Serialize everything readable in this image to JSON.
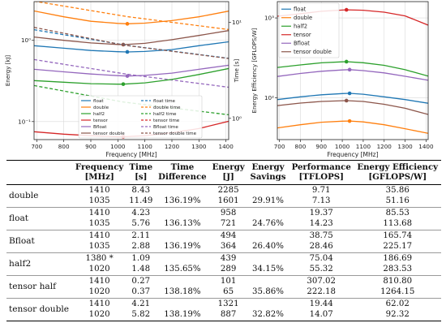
{
  "charts": [
    {
      "type": "line",
      "xlabel": "Frequency [MHz]",
      "ylabel": "Energy [kJ]",
      "y2label": "Time [s]",
      "xlim": [
        690,
        1410
      ],
      "xticks": [
        700,
        800,
        900,
        1000,
        1100,
        1200,
        1300,
        1400
      ],
      "ylim": [
        0.06,
        3.0
      ],
      "yscale": "log",
      "yticks": [
        0.1,
        1
      ],
      "yticklabels": [
        "10⁻¹",
        "10⁰"
      ],
      "y2lim": [
        0.6,
        16.5
      ],
      "y2scale": "log",
      "y2ticks": [
        1,
        10
      ],
      "y2ticklabels": [
        "10⁰",
        "10¹"
      ],
      "grid": true,
      "legend": {
        "placement": "bottom-center",
        "columns": 2,
        "entries": [
          {
            "label": "float",
            "color": "#1f77b4",
            "dash": false
          },
          {
            "label": "float time",
            "color": "#1f77b4",
            "dash": true
          },
          {
            "label": "double",
            "color": "#ff7f0e",
            "dash": false
          },
          {
            "label": "double time",
            "color": "#ff7f0e",
            "dash": true
          },
          {
            "label": "half2",
            "color": "#2ca02c",
            "dash": false
          },
          {
            "label": "half2 time",
            "color": "#2ca02c",
            "dash": true
          },
          {
            "label": "tensor",
            "color": "#d62728",
            "dash": false
          },
          {
            "label": "tensor time",
            "color": "#d62728",
            "dash": true
          },
          {
            "label": "Bfloat",
            "color": "#9467bd",
            "dash": false
          },
          {
            "label": "Bfloat time",
            "color": "#9467bd",
            "dash": true
          },
          {
            "label": "tensor double",
            "color": "#8c564b",
            "dash": false
          },
          {
            "label": "tensor double time",
            "color": "#8c564b",
            "dash": true
          }
        ]
      },
      "series": [
        {
          "key": "double",
          "axis": "y",
          "color": "#ff7f0e",
          "dash": false,
          "x": [
            690,
            800,
            900,
            1000,
            1035,
            1100,
            1200,
            1300,
            1410
          ],
          "y": [
            2.3,
            1.95,
            1.72,
            1.62,
            1.6,
            1.63,
            1.75,
            1.95,
            2.29
          ],
          "marker": [
            1035,
            1.6
          ]
        },
        {
          "key": "double time",
          "axis": "y2",
          "color": "#ff7f0e",
          "dash": true,
          "x": [
            690,
            1035,
            1410
          ],
          "y": [
            16.7,
            11.5,
            8.43
          ]
        },
        {
          "key": "tensor double",
          "axis": "y",
          "color": "#8c564b",
          "dash": false,
          "x": [
            690,
            800,
            900,
            1000,
            1020,
            1100,
            1200,
            1300,
            1410
          ],
          "y": [
            1.1,
            1.0,
            0.93,
            0.89,
            0.887,
            0.92,
            1.02,
            1.15,
            1.32
          ],
          "marker": [
            1020,
            0.887
          ]
        },
        {
          "key": "float",
          "axis": "y",
          "color": "#1f77b4",
          "dash": false,
          "x": [
            690,
            800,
            900,
            1000,
            1035,
            1100,
            1200,
            1300,
            1410
          ],
          "y": [
            0.86,
            0.8,
            0.75,
            0.725,
            0.721,
            0.73,
            0.77,
            0.86,
            0.96
          ],
          "marker": [
            1035,
            0.721
          ]
        },
        {
          "key": "float time",
          "axis": "y2",
          "color": "#1f77b4",
          "dash": true,
          "x": [
            690,
            1035,
            1410
          ],
          "y": [
            8.4,
            5.76,
            4.23
          ]
        },
        {
          "key": "tensor double time",
          "axis": "y2",
          "color": "#8c564b",
          "dash": true,
          "x": [
            690,
            1020,
            1410
          ],
          "y": [
            8.9,
            5.82,
            4.21
          ]
        },
        {
          "key": "Bfloat",
          "axis": "y",
          "color": "#9467bd",
          "dash": false,
          "x": [
            690,
            800,
            900,
            1000,
            1035,
            1100,
            1200,
            1300,
            1410
          ],
          "y": [
            0.44,
            0.41,
            0.385,
            0.368,
            0.364,
            0.37,
            0.395,
            0.44,
            0.494
          ],
          "marker": [
            1035,
            0.364
          ]
        },
        {
          "key": "Bfloat time",
          "axis": "y2",
          "color": "#9467bd",
          "dash": true,
          "x": [
            690,
            1035,
            1410
          ],
          "y": [
            4.1,
            2.88,
            2.11
          ]
        },
        {
          "key": "half2",
          "axis": "y",
          "color": "#2ca02c",
          "dash": false,
          "x": [
            690,
            800,
            900,
            1000,
            1020,
            1100,
            1200,
            1300,
            1410
          ],
          "y": [
            0.32,
            0.305,
            0.293,
            0.289,
            0.289,
            0.3,
            0.33,
            0.38,
            0.45
          ],
          "marker": [
            1020,
            0.289
          ]
        },
        {
          "key": "half2 time",
          "axis": "y2",
          "color": "#2ca02c",
          "dash": true,
          "x": [
            690,
            1020,
            1410
          ],
          "y": [
            2.2,
            1.48,
            1.09
          ]
        },
        {
          "key": "tensor",
          "axis": "y",
          "color": "#d62728",
          "dash": false,
          "x": [
            690,
            800,
            900,
            1000,
            1020,
            1100,
            1200,
            1300,
            1410
          ],
          "y": [
            0.075,
            0.07,
            0.067,
            0.065,
            0.065,
            0.067,
            0.073,
            0.082,
            0.101
          ],
          "marker": [
            1020,
            0.065
          ]
        },
        {
          "key": "tensor time",
          "axis": "y2",
          "color": "#d62728",
          "dash": true,
          "x": [
            690,
            1020,
            1410
          ],
          "y": [
            0.56,
            0.37,
            0.27
          ]
        }
      ]
    },
    {
      "type": "line",
      "xlabel": "Frequency [MHz]",
      "ylabel": "Energy Efficiency [GFLOPS/W]",
      "xlim": [
        690,
        1410
      ],
      "xticks": [
        700,
        800,
        900,
        1000,
        1100,
        1200,
        1300,
        1400
      ],
      "ylim": [
        30,
        1600
      ],
      "yscale": "log",
      "yticks": [
        100,
        1000
      ],
      "yticklabels": [
        "10²",
        "10³"
      ],
      "grid": true,
      "legend": {
        "placement": "top-left",
        "columns": 1,
        "entries": [
          {
            "label": "float",
            "color": "#1f77b4"
          },
          {
            "label": "double",
            "color": "#ff7f0e"
          },
          {
            "label": "half2",
            "color": "#2ca02c"
          },
          {
            "label": "tensor",
            "color": "#d62728"
          },
          {
            "label": "Bfloat",
            "color": "#9467bd"
          },
          {
            "label": "tensor double",
            "color": "#8c564b"
          }
        ]
      },
      "series": [
        {
          "key": "tensor",
          "color": "#d62728",
          "x": [
            690,
            800,
            900,
            1000,
            1020,
            1100,
            1200,
            1300,
            1410
          ],
          "y": [
            1050,
            1130,
            1210,
            1255,
            1264,
            1250,
            1180,
            1060,
            811
          ],
          "marker": [
            1020,
            1264
          ]
        },
        {
          "key": "half2",
          "color": "#2ca02c",
          "x": [
            690,
            800,
            900,
            1000,
            1020,
            1100,
            1200,
            1300,
            1410
          ],
          "y": [
            240,
            258,
            274,
            282,
            283.5,
            275,
            255,
            225,
            186.7
          ],
          "marker": [
            1020,
            283.5
          ]
        },
        {
          "key": "Bfloat",
          "color": "#9467bd",
          "x": [
            690,
            800,
            900,
            1000,
            1035,
            1100,
            1200,
            1300,
            1410
          ],
          "y": [
            185,
            202,
            215,
            223,
            225.2,
            219,
            205,
            186,
            165.7
          ],
          "marker": [
            1035,
            225.2
          ]
        },
        {
          "key": "float",
          "color": "#1f77b4",
          "x": [
            690,
            800,
            900,
            1000,
            1035,
            1100,
            1200,
            1300,
            1410
          ],
          "y": [
            95,
            103,
            109,
            113,
            113.7,
            111,
            103,
            95,
            85.5
          ],
          "marker": [
            1035,
            113.7
          ]
        },
        {
          "key": "tensor double",
          "color": "#8c564b",
          "x": [
            690,
            800,
            900,
            1000,
            1020,
            1100,
            1200,
            1300,
            1410
          ],
          "y": [
            80,
            86,
            90,
            92,
            92.3,
            90,
            83,
            74,
            62
          ],
          "marker": [
            1020,
            92.3
          ]
        },
        {
          "key": "double",
          "color": "#ff7f0e",
          "x": [
            690,
            800,
            900,
            1000,
            1035,
            1100,
            1200,
            1300,
            1410
          ],
          "y": [
            42,
            46,
            49.5,
            51,
            51.2,
            50,
            46,
            41,
            35.9
          ],
          "marker": [
            1035,
            51.2
          ]
        }
      ]
    }
  ],
  "table": {
    "headers": [
      {
        "l1": "",
        "l2": ""
      },
      {
        "l1": "Frequency",
        "l2": "[MHz]"
      },
      {
        "l1": "Time",
        "l2": "[s]"
      },
      {
        "l1": "Time",
        "l2": "Difference"
      },
      {
        "l1": "Energy",
        "l2": "[J]"
      },
      {
        "l1": "Energy",
        "l2": "Savings"
      },
      {
        "l1": "Performance",
        "l2": "[TFLOPS]"
      },
      {
        "l1": "Energy Efficiency",
        "l2": "[GFLOPS/W]"
      }
    ],
    "rows": [
      {
        "label": "double",
        "cells": [
          [
            "1410",
            "1035"
          ],
          [
            "8.43",
            "11.49"
          ],
          [
            "",
            "136.19%"
          ],
          [
            "2285",
            "1601"
          ],
          [
            "",
            "29.91%"
          ],
          [
            "9.71",
            "7.13"
          ],
          [
            "35.86",
            "51.16"
          ]
        ]
      },
      {
        "label": "float",
        "cells": [
          [
            "1410",
            "1035"
          ],
          [
            "4.23",
            "5.76"
          ],
          [
            "",
            "136.13%"
          ],
          [
            "958",
            "721"
          ],
          [
            "",
            "24.76%"
          ],
          [
            "19.37",
            "14.23"
          ],
          [
            "85.53",
            "113.68"
          ]
        ]
      },
      {
        "label": "Bfloat",
        "cells": [
          [
            "1410",
            "1035"
          ],
          [
            "2.11",
            "2.88"
          ],
          [
            "",
            "136.19%"
          ],
          [
            "494",
            "364"
          ],
          [
            "",
            "26.40%"
          ],
          [
            "38.75",
            "28.46"
          ],
          [
            "165.74",
            "225.17"
          ]
        ]
      },
      {
        "label": "half2",
        "cells": [
          [
            "1380 *",
            "1020"
          ],
          [
            "1.09",
            "1.48"
          ],
          [
            "",
            "135.65%"
          ],
          [
            "439",
            "289"
          ],
          [
            "",
            "34.15%"
          ],
          [
            "75.04",
            "55.32"
          ],
          [
            "186.69",
            "283.53"
          ]
        ]
      },
      {
        "label": "tensor half",
        "cells": [
          [
            "1410",
            "1020"
          ],
          [
            "0.27",
            "0.37"
          ],
          [
            "",
            "138.18%"
          ],
          [
            "101",
            "65"
          ],
          [
            "",
            "35.86%"
          ],
          [
            "307.02",
            "222.18"
          ],
          [
            "810.80",
            "1264.15"
          ]
        ]
      },
      {
        "label": "tensor double",
        "cells": [
          [
            "1410",
            "1020"
          ],
          [
            "4.21",
            "5.82"
          ],
          [
            "",
            "138.19%"
          ],
          [
            "1321",
            "887"
          ],
          [
            "",
            "32.82%"
          ],
          [
            "19.44",
            "14.07"
          ],
          [
            "62.02",
            "92.32"
          ]
        ]
      }
    ]
  }
}
